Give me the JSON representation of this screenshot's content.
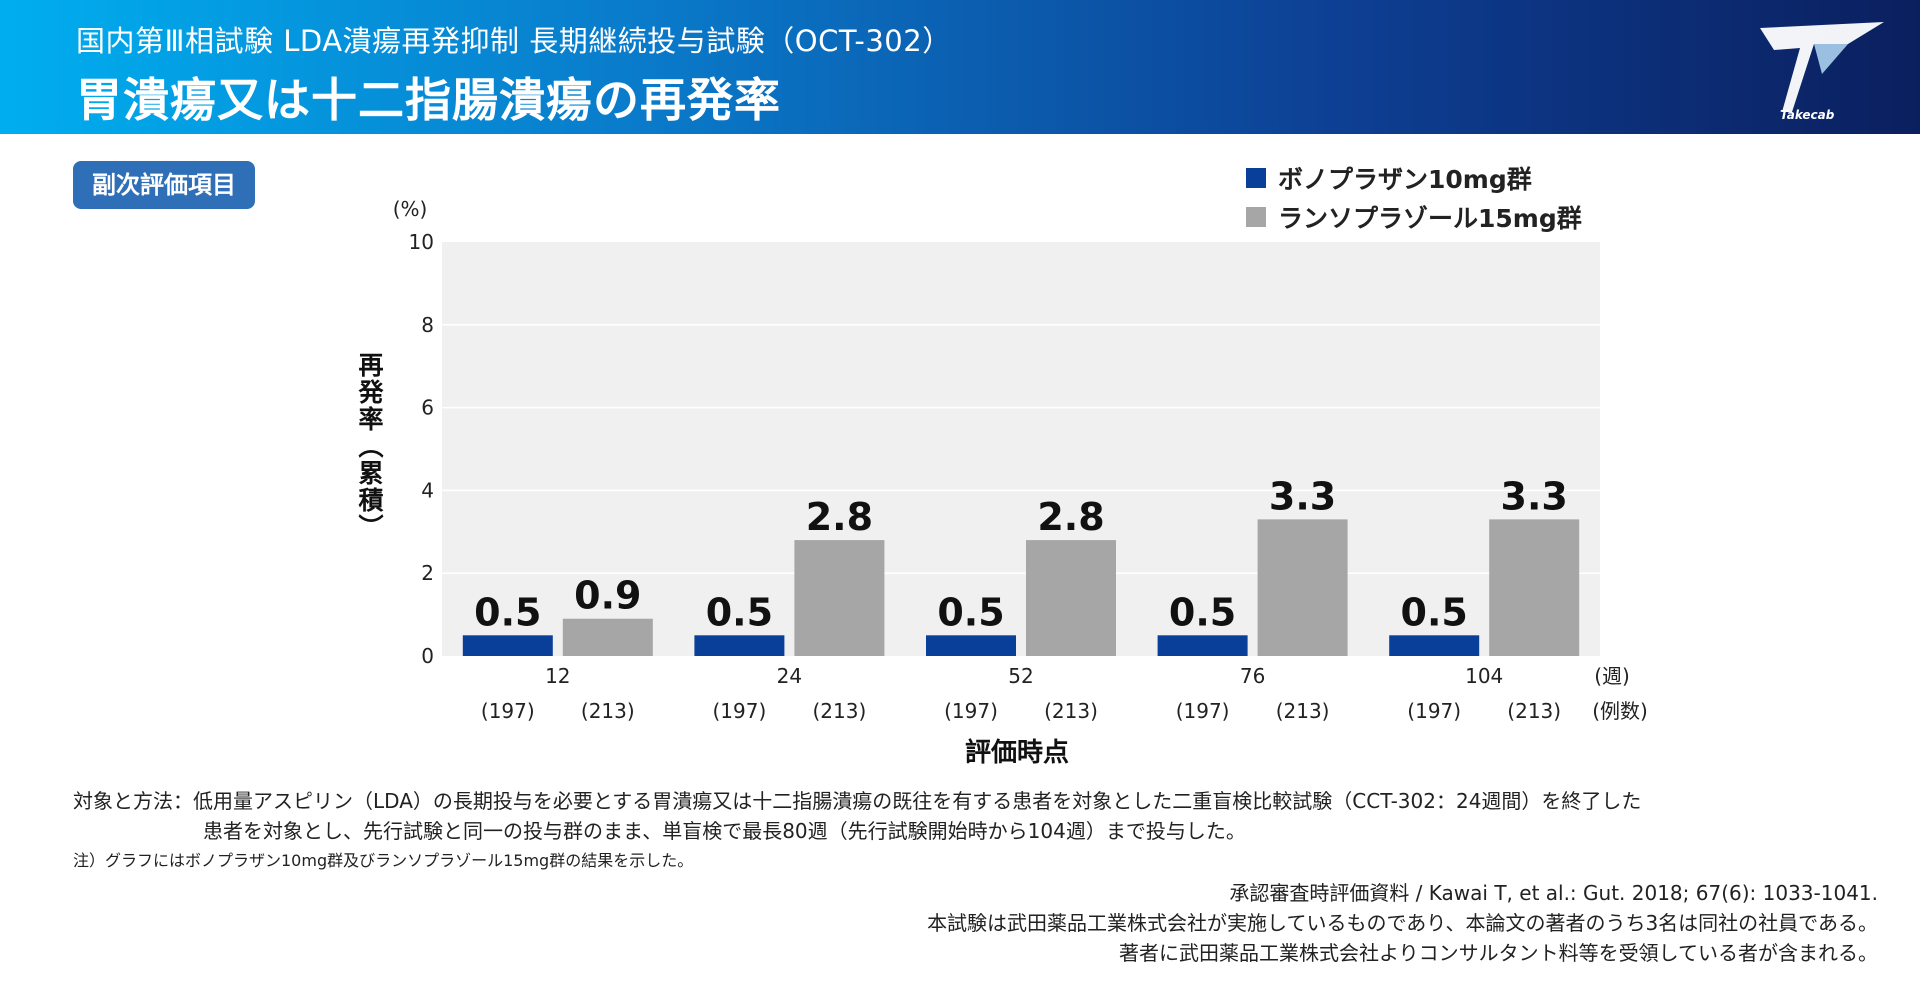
{
  "header": {
    "subtitle": "国内第Ⅲ相試験 LDA潰瘍再発抑制 長期継続投与試験（OCT-302）",
    "title": "胃潰瘍又は十二指腸潰瘍の再発率",
    "logo_text": "Takecab"
  },
  "badge": "副次評価項目",
  "colors": {
    "vono": "#0a3f99",
    "lanso": "#a6a6a6",
    "plot_bg": "#f0f0f0",
    "badge": "#2f6fb7"
  },
  "chart_data": {
    "type": "bar",
    "unit_label": "(%)",
    "ylabel": "再発率（累積）",
    "xlabel": "評価時点",
    "ylim": [
      0,
      10
    ],
    "yticks": [
      "0",
      "2",
      "4",
      "6",
      "8",
      "10"
    ],
    "categories": [
      "12",
      "24",
      "52",
      "76",
      "104"
    ],
    "x_unit": "(週)",
    "n_unit": "(例数)",
    "series": [
      {
        "name": "ボノプラザン10mg群",
        "values": [
          0.5,
          0.5,
          0.5,
          0.5,
          0.5
        ],
        "value_labels": [
          "0.5",
          "0.5",
          "0.5",
          "0.5",
          "0.5"
        ],
        "n_labels": [
          "(197)",
          "(197)",
          "(197)",
          "(197)",
          "(197)"
        ]
      },
      {
        "name": "ランソプラゾール15mg群",
        "values": [
          0.9,
          2.8,
          2.8,
          3.3,
          3.3
        ],
        "value_labels": [
          "0.9",
          "2.8",
          "2.8",
          "3.3",
          "3.3"
        ],
        "n_labels": [
          "(213)",
          "(213)",
          "(213)",
          "(213)",
          "(213)"
        ]
      }
    ]
  },
  "notes": {
    "method_line1": "対象と方法：低用量アスピリン（LDA）の長期投与を必要とする胃潰瘍又は十二指腸潰瘍の既往を有する患者を対象とした二重盲検比較試験（CCT-302：24週間）を終了した",
    "method_line2": "患者を対象とし、先行試験と同一の投与群のまま、単盲検で最長80週（先行試験開始時から104週）まで投与した。",
    "note": "注）グラフにはボノプラザン10mg群及びランソプラゾール15mg群の結果を示した。"
  },
  "references": [
    "承認審査時評価資料 / Kawai T, et al.: Gut. 2018; 67(6): 1033-1041.",
    "本試験は武田薬品工業株式会社が実施しているものであり、本論文の著者のうち3名は同社の社員である。",
    "著者に武田薬品工業株式会社よりコンサルタント料等を受領している者が含まれる。"
  ]
}
